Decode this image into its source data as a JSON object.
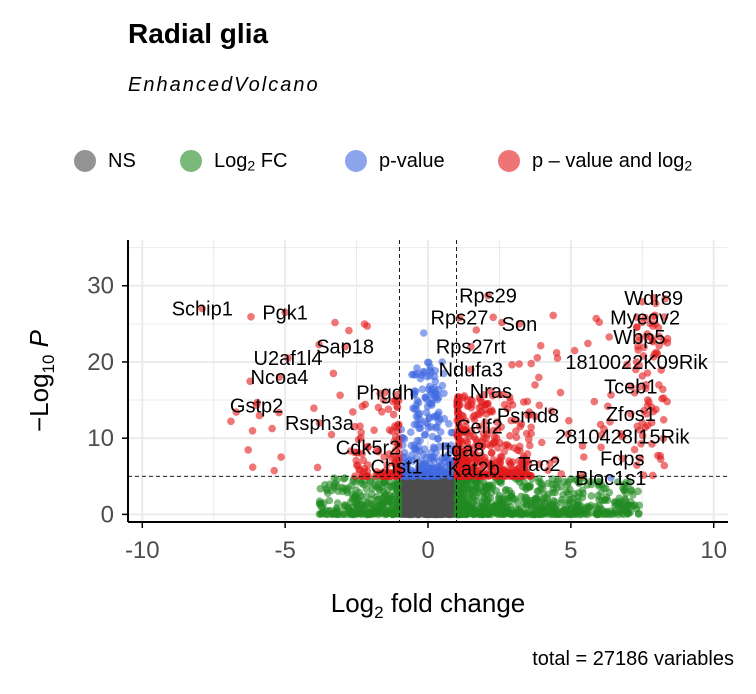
{
  "title": "Radial glia",
  "subtitle": "EnhancedVolcano",
  "legend": {
    "items": [
      {
        "key": "ns",
        "label": "NS",
        "sub": "",
        "tail": "",
        "color": "#4d4d4d"
      },
      {
        "key": "fc",
        "label": "Log",
        "sub": "2",
        "tail": " FC",
        "color": "#228b22"
      },
      {
        "key": "p",
        "label": "p-value",
        "sub": "",
        "tail": "",
        "color": "#4169e1"
      },
      {
        "key": "both",
        "label": "p – value and log",
        "sub": "2",
        "tail": "",
        "color": "#e31a1c"
      }
    ]
  },
  "caption": "total = 27186 variables",
  "chart_data": {
    "type": "scatter",
    "title": "Radial glia",
    "subtitle": "EnhancedVolcano",
    "xlabel": "Log2 fold change",
    "ylabel": "−Log10 P",
    "xlim": [
      -10.5,
      10.5
    ],
    "ylim": [
      -1,
      36
    ],
    "xticks": [
      -10,
      -5,
      0,
      5,
      10
    ],
    "yticks": [
      0,
      10,
      20,
      30
    ],
    "fc_cutoff": 1,
    "p_cutoff_log10": 5,
    "grid": true,
    "legend_position": "top",
    "colors": {
      "NS": "#4d4d4d",
      "FC": "#228b22",
      "P": "#4169e1",
      "both": "#e31a1c"
    },
    "labels": [
      {
        "text": "Schip1",
        "x": -7.9,
        "y": 27.0
      },
      {
        "text": "Pgk1",
        "x": -5.0,
        "y": 26.5
      },
      {
        "text": "U2af1l4",
        "x": -4.9,
        "y": 20.5
      },
      {
        "text": "Sap18",
        "x": -2.9,
        "y": 22.0
      },
      {
        "text": "Ncoa4",
        "x": -5.2,
        "y": 18.0
      },
      {
        "text": "Phgdh",
        "x": -1.5,
        "y": 16.0
      },
      {
        "text": "Gstp2",
        "x": -6.0,
        "y": 14.3
      },
      {
        "text": "Rsph3a",
        "x": -3.8,
        "y": 12.0
      },
      {
        "text": "Cdk5r2",
        "x": -2.1,
        "y": 8.8
      },
      {
        "text": "Chst1",
        "x": -1.1,
        "y": 6.3
      },
      {
        "text": "Rps29",
        "x": 2.1,
        "y": 28.7
      },
      {
        "text": "Rps27",
        "x": 1.1,
        "y": 25.8
      },
      {
        "text": "Son",
        "x": 3.2,
        "y": 25.0
      },
      {
        "text": "Rps27rt",
        "x": 1.5,
        "y": 22.0
      },
      {
        "text": "Ndufa3",
        "x": 1.5,
        "y": 19.0
      },
      {
        "text": "Nras",
        "x": 2.2,
        "y": 16.2
      },
      {
        "text": "Psmd8",
        "x": 3.5,
        "y": 13.0
      },
      {
        "text": "Celf2",
        "x": 1.8,
        "y": 11.5
      },
      {
        "text": "Itga8",
        "x": 1.2,
        "y": 8.5
      },
      {
        "text": "Kat2b",
        "x": 1.6,
        "y": 6.0
      },
      {
        "text": "Tac2",
        "x": 3.9,
        "y": 6.6
      },
      {
        "text": "Wdr89",
        "x": 7.9,
        "y": 28.4
      },
      {
        "text": "Myeov2",
        "x": 7.6,
        "y": 25.8
      },
      {
        "text": "Wbp5",
        "x": 7.4,
        "y": 23.3
      },
      {
        "text": "1810022K09Rik",
        "x": 7.3,
        "y": 20.0
      },
      {
        "text": "Tceb1",
        "x": 7.1,
        "y": 16.8
      },
      {
        "text": "Zfos1",
        "x": 7.1,
        "y": 13.2
      },
      {
        "text": "2810428I15Rik",
        "x": 6.8,
        "y": 10.2
      },
      {
        "text": "Fdps",
        "x": 6.8,
        "y": 7.3
      },
      {
        "text": "Bloc1s1",
        "x": 6.4,
        "y": 4.8
      }
    ]
  }
}
